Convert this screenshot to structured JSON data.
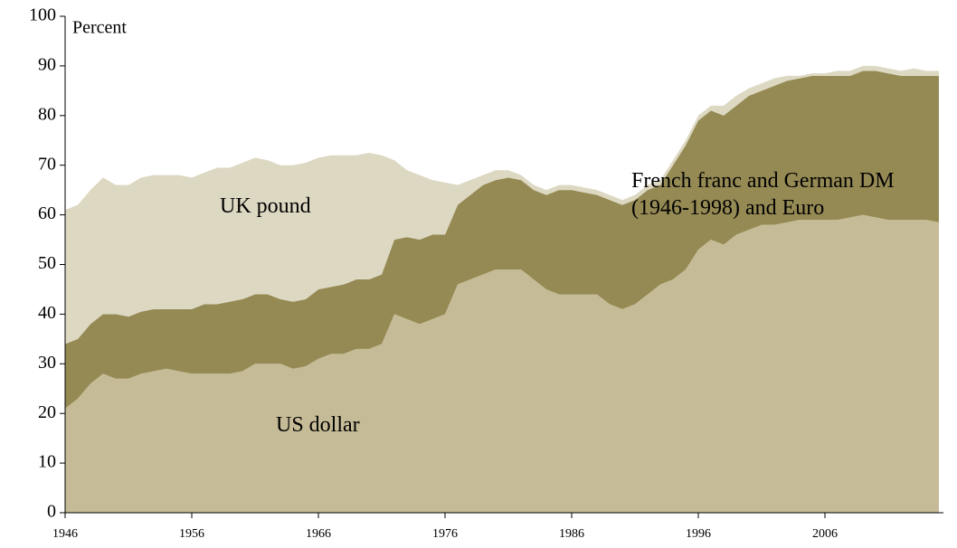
{
  "chart_data": {
    "type": "stacked_area",
    "ylabel": "Percent",
    "x": [
      1946,
      1947,
      1948,
      1949,
      1950,
      1951,
      1952,
      1953,
      1954,
      1955,
      1956,
      1957,
      1958,
      1959,
      1960,
      1961,
      1962,
      1963,
      1964,
      1965,
      1966,
      1967,
      1968,
      1969,
      1970,
      1971,
      1972,
      1973,
      1974,
      1975,
      1976,
      1977,
      1978,
      1979,
      1980,
      1981,
      1982,
      1983,
      1984,
      1985,
      1986,
      1987,
      1988,
      1989,
      1990,
      1991,
      1992,
      1993,
      1994,
      1995,
      1996,
      1997,
      1998,
      1999,
      2000,
      2001,
      2002,
      2003,
      2004,
      2005,
      2006,
      2007,
      2008,
      2009,
      2010,
      2011,
      2012,
      2013,
      2014,
      2015
    ],
    "series": [
      {
        "name": "US dollar",
        "color": "#c5bb96",
        "values": [
          21,
          23,
          26,
          28,
          27,
          27,
          28,
          28.5,
          29,
          28.5,
          28,
          28,
          28,
          28,
          28.5,
          30,
          30,
          30,
          29,
          29.5,
          31,
          32,
          32,
          33,
          33,
          34,
          40,
          39,
          38,
          39,
          40,
          46,
          47,
          48,
          49,
          49,
          49,
          47,
          45,
          44,
          44,
          44,
          44,
          42,
          41,
          42,
          44,
          46,
          47,
          49,
          53,
          55,
          54,
          56,
          57,
          58,
          58,
          58.5,
          59,
          59,
          59,
          59,
          59.5,
          60,
          59.5,
          59,
          59,
          59,
          59,
          58.5
        ]
      },
      {
        "name": "French franc and German DM (1946-1998) and Euro",
        "color": "#958a54",
        "values": [
          13,
          12,
          12,
          12,
          13,
          12.5,
          12.5,
          12.5,
          12,
          12.5,
          13,
          14,
          14,
          14.5,
          14.5,
          14,
          14,
          13,
          13.5,
          13.5,
          14,
          13.5,
          14,
          14,
          14,
          14,
          15,
          16.5,
          17,
          17,
          16,
          16,
          17,
          18,
          18,
          18.5,
          18,
          18,
          19,
          21,
          21,
          20.5,
          20,
          21,
          21,
          21,
          21,
          20,
          23,
          25,
          26,
          26,
          26,
          26,
          27,
          27,
          28,
          28.5,
          28.5,
          29,
          29,
          29,
          28.5,
          29,
          29.5,
          29.5,
          29,
          29,
          29,
          29.5
        ]
      },
      {
        "name": "UK pound",
        "color": "#ddd8c2",
        "values": [
          27,
          27,
          27,
          27.5,
          26,
          26.5,
          27,
          27,
          27,
          27,
          26.5,
          26.5,
          27.5,
          27,
          27.5,
          27.5,
          27,
          27,
          27.5,
          27.5,
          26.5,
          26.5,
          26,
          25,
          25.5,
          24,
          16,
          13.5,
          13,
          11,
          10.5,
          4,
          3,
          2,
          2,
          1.5,
          1,
          1,
          1,
          1,
          1,
          1,
          1,
          1,
          1,
          1,
          1,
          1,
          1,
          1,
          1,
          1,
          2,
          2,
          1.5,
          1.5,
          1.5,
          1,
          0.5,
          0.5,
          0.5,
          1,
          1,
          1,
          1,
          1,
          1,
          1.5,
          1,
          1
        ]
      }
    ],
    "xlim": [
      1946,
      2015
    ],
    "xticks": [
      1946,
      1956,
      1966,
      1976,
      1986,
      1996,
      2006
    ],
    "ylim": [
      0,
      100
    ],
    "yticks": [
      0,
      10,
      20,
      30,
      40,
      50,
      60,
      70,
      80,
      90,
      100
    ],
    "grid": false
  }
}
